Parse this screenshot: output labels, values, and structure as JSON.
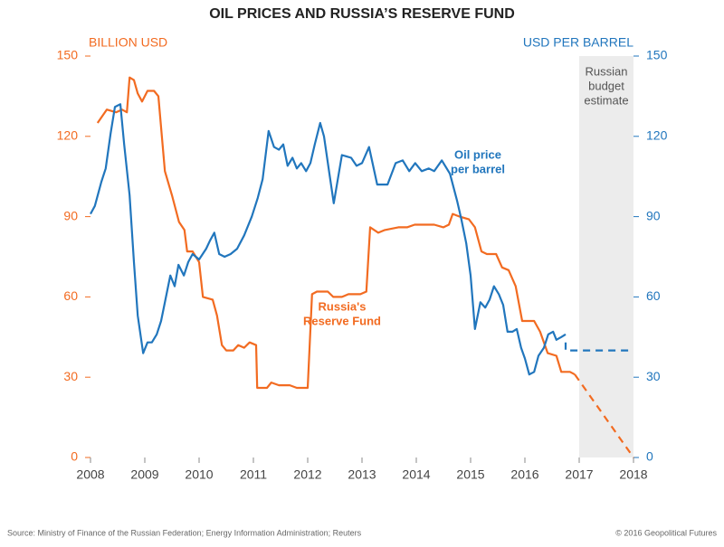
{
  "chart_data": {
    "type": "line",
    "title": "OIL PRICES AND RUSSIA’S RESERVE FUND",
    "y_label": "BILLION USD",
    "y2_label": "USD PER BARREL",
    "source": "Source: Ministry of Finance of the Russian Federation; Energy Information Administration; Reuters",
    "credit": "© 2016 Geopolitical Futures",
    "xlim": [
      2008,
      2018
    ],
    "xticks": [
      2008,
      2009,
      2010,
      2011,
      2012,
      2013,
      2014,
      2015,
      2016,
      2017,
      2018
    ],
    "ylim": [
      0,
      150
    ],
    "yticks": [
      0,
      30,
      60,
      90,
      120,
      150
    ],
    "y2lim": [
      0,
      150
    ],
    "y2ticks": [
      0,
      30,
      60,
      90,
      120,
      150
    ],
    "y_color": "#f26b21",
    "y2_color": "#2176bd",
    "shaded": {
      "xlim": [
        2017,
        2018
      ],
      "color": "#ececec",
      "label_lines": [
        "Russian",
        "budget",
        "estimate"
      ]
    },
    "series": [
      {
        "label_lines": [
          "Russia's",
          "Reserve Fund"
        ],
        "color": "#f26b21",
        "axis": "y",
        "x": [
          2008.13,
          2008.3,
          2008.47,
          2008.58,
          2008.67,
          2008.72,
          2008.8,
          2008.87,
          2008.95,
          2009.05,
          2009.17,
          2009.25,
          2009.37,
          2009.5,
          2009.63,
          2009.73,
          2009.78,
          2009.88,
          2010.0,
          2010.07,
          2010.25,
          2010.33,
          2010.42,
          2010.5,
          2010.63,
          2010.72,
          2010.83,
          2010.93,
          2011.05,
          2011.07,
          2011.25,
          2011.33,
          2011.47,
          2011.67,
          2011.8,
          2011.92,
          2012.0,
          2012.08,
          2012.17,
          2012.37,
          2012.47,
          2012.63,
          2012.75,
          2012.97,
          2013.08,
          2013.15,
          2013.3,
          2013.42,
          2013.67,
          2013.83,
          2013.97,
          2014.17,
          2014.33,
          2014.5,
          2014.6,
          2014.67,
          2014.8,
          2014.97,
          2015.08,
          2015.2,
          2015.3,
          2015.47,
          2015.58,
          2015.7,
          2015.83,
          2015.95,
          2016.17,
          2016.28,
          2016.42,
          2016.58,
          2016.67,
          2016.83,
          2016.92
        ],
        "values": [
          125,
          130,
          129,
          130,
          129,
          142,
          141,
          136,
          133,
          137,
          137,
          135,
          107,
          98,
          88,
          85,
          77,
          77,
          73,
          60,
          59,
          53,
          42,
          40,
          40,
          42,
          41,
          43,
          42,
          26,
          26,
          28,
          27,
          27,
          26,
          26,
          26,
          61,
          62,
          62,
          60,
          60,
          61,
          61,
          62,
          86,
          84,
          85,
          86,
          86,
          87,
          87,
          87,
          86,
          87,
          91,
          90,
          89,
          86,
          77,
          76,
          76,
          71,
          70,
          64,
          51,
          51,
          47,
          39,
          38,
          32,
          32,
          31
        ],
        "projection": {
          "x": [
            2016.92,
            2018
          ],
          "values": [
            31,
            0
          ]
        }
      },
      {
        "label_lines": [
          "Oil price",
          "per barrel"
        ],
        "color": "#2176bd",
        "axis": "y2",
        "x": [
          2008.0,
          2008.08,
          2008.2,
          2008.28,
          2008.37,
          2008.45,
          2008.55,
          2008.62,
          2008.72,
          2008.8,
          2008.87,
          2008.97,
          2009.05,
          2009.13,
          2009.22,
          2009.3,
          2009.38,
          2009.47,
          2009.55,
          2009.62,
          2009.72,
          2009.8,
          2009.88,
          2010.0,
          2010.13,
          2010.2,
          2010.28,
          2010.37,
          2010.47,
          2010.58,
          2010.7,
          2010.83,
          2010.97,
          2011.08,
          2011.17,
          2011.28,
          2011.38,
          2011.47,
          2011.55,
          2011.63,
          2011.72,
          2011.8,
          2011.88,
          2011.97,
          2012.05,
          2012.13,
          2012.23,
          2012.3,
          2012.4,
          2012.48,
          2012.63,
          2012.8,
          2012.9,
          2013.0,
          2013.13,
          2013.28,
          2013.47,
          2013.62,
          2013.75,
          2013.87,
          2013.98,
          2014.1,
          2014.23,
          2014.33,
          2014.47,
          2014.62,
          2014.75,
          2014.83,
          2014.92,
          2015.0,
          2015.08,
          2015.18,
          2015.27,
          2015.35,
          2015.43,
          2015.52,
          2015.6,
          2015.68,
          2015.77,
          2015.85,
          2015.93,
          2016.0,
          2016.08,
          2016.17,
          2016.25,
          2016.35,
          2016.43,
          2016.52,
          2016.58,
          2016.67,
          2016.75
        ],
        "values": [
          91,
          94,
          103,
          108,
          121,
          131,
          132,
          117,
          98,
          73,
          53,
          39,
          43,
          43,
          46,
          51,
          59,
          68,
          64,
          72,
          68,
          73,
          76,
          74,
          78,
          81,
          84,
          76,
          75,
          76,
          78,
          83,
          90,
          97,
          104,
          122,
          116,
          115,
          117,
          109,
          112,
          108,
          110,
          107,
          110,
          117,
          125,
          120,
          106,
          95,
          113,
          112,
          109,
          110,
          116,
          102,
          102,
          110,
          111,
          107,
          110,
          107,
          108,
          107,
          111,
          106,
          96,
          89,
          80,
          68,
          48,
          58,
          56,
          59,
          64,
          61,
          57,
          47,
          47,
          48,
          41,
          37,
          31,
          32,
          38,
          41,
          46,
          47,
          44,
          45,
          46
        ],
        "projection": {
          "x": [
            2016.75,
            2016.75,
            2018
          ],
          "values": [
            43,
            40,
            40
          ]
        }
      }
    ]
  }
}
